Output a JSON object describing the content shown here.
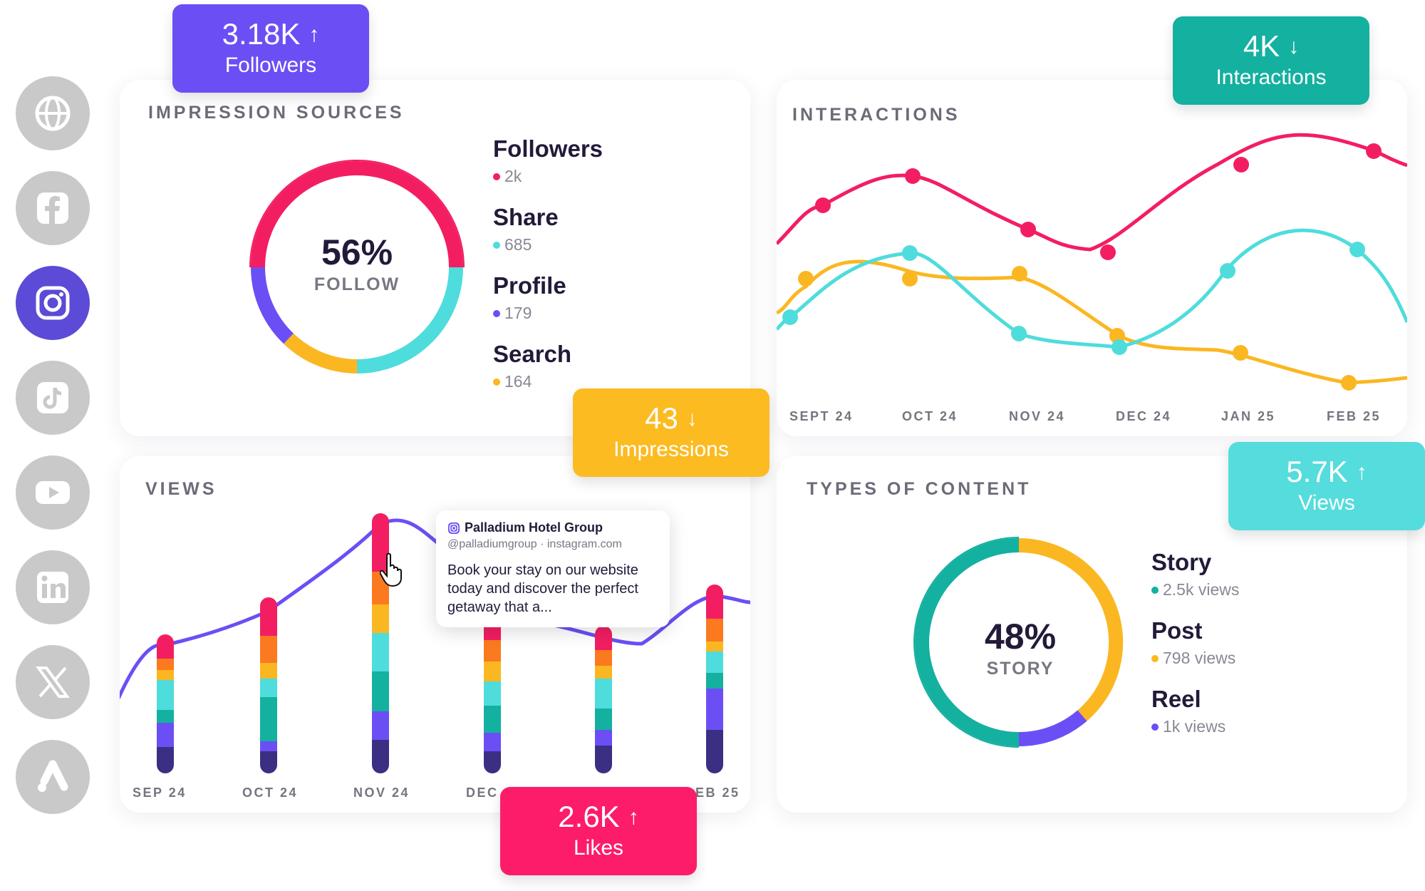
{
  "social_icons": [
    {
      "name": "globe-icon",
      "active": false
    },
    {
      "name": "facebook-icon",
      "active": false
    },
    {
      "name": "instagram-icon",
      "active": true
    },
    {
      "name": "tiktok-icon",
      "active": false
    },
    {
      "name": "youtube-icon",
      "active": false
    },
    {
      "name": "linkedin-icon",
      "active": false
    },
    {
      "name": "x-icon",
      "active": false
    },
    {
      "name": "google-ads-icon",
      "active": false
    }
  ],
  "badges": {
    "followers": {
      "value": "3.18K",
      "label": "Followers",
      "trend": "up",
      "color": "#6b4ff5"
    },
    "interactions": {
      "value": "4K",
      "label": "Interactions",
      "trend": "down",
      "color": "#14b0a0"
    },
    "impressions": {
      "value": "43",
      "label": "Impressions",
      "trend": "down",
      "color": "#fbbb21"
    },
    "views": {
      "value": "5.7K",
      "label": "Views",
      "trend": "up",
      "color": "#55dcdc"
    },
    "likes": {
      "value": "2.6K",
      "label": "Likes",
      "trend": "up",
      "color": "#fc1c6a"
    }
  },
  "impression_sources": {
    "title": "IMPRESSION SOURCES",
    "center_value": "56%",
    "center_label": "FOLLOW",
    "items": [
      {
        "name": "Followers",
        "value": "2k",
        "color": "#f31e62"
      },
      {
        "name": "Share",
        "value": "685",
        "color": "#4fdcdc"
      },
      {
        "name": "Profile",
        "value": "179",
        "color": "#6b4ff5"
      },
      {
        "name": "Search",
        "value": "164",
        "color": "#fbb721"
      }
    ]
  },
  "interactions": {
    "title": "INTERACTIONS",
    "x_labels": [
      "SEPT 24",
      "OCT 24",
      "NOV 24",
      "DEC 24",
      "JAN 25",
      "FEB 25"
    ]
  },
  "views": {
    "title": "VIEWS",
    "x_labels": [
      "SEP 24",
      "OCT 24",
      "NOV 24",
      "DEC",
      "EB 25"
    ]
  },
  "tooltip": {
    "account": "Palladium Hotel Group",
    "handle": "@palladiumgroup · instagram.com",
    "text": "Book your stay on our website today and discover the perfect getaway that a..."
  },
  "types_of_content": {
    "title": "TYPES OF CONTENT",
    "center_value": "48%",
    "center_label": "STORY",
    "items": [
      {
        "name": "Story",
        "value": "2.5k views",
        "color": "#14b0a0"
      },
      {
        "name": "Post",
        "value": "798 views",
        "color": "#fbb721"
      },
      {
        "name": "Reel",
        "value": "1k views",
        "color": "#6b4ff5"
      }
    ]
  }
}
